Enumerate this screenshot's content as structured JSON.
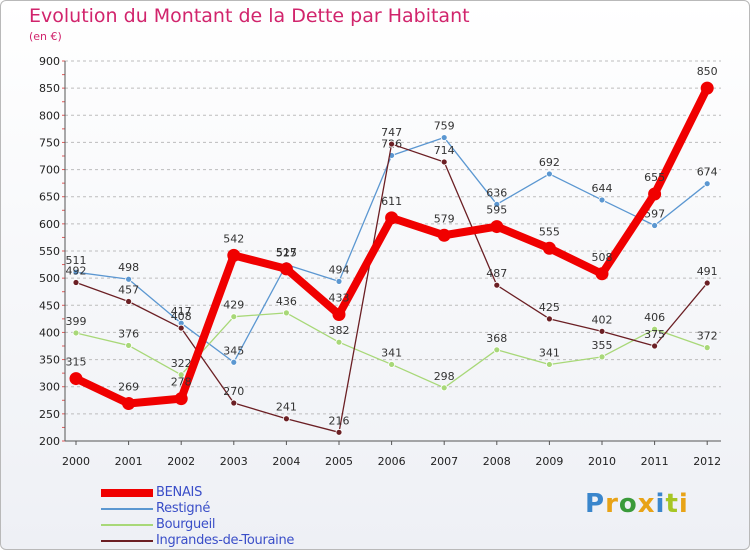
{
  "chart_data": {
    "type": "line",
    "title": "Evolution du Montant de la Dette par Habitant",
    "subtitle": "(en €)",
    "xlabel": "",
    "ylabel": "",
    "ylim": [
      200,
      900
    ],
    "yticks": [
      200,
      250,
      300,
      350,
      400,
      450,
      500,
      550,
      600,
      650,
      700,
      750,
      800,
      850,
      900
    ],
    "x": [
      "2000",
      "2001",
      "2002",
      "2003",
      "2004",
      "2005",
      "2006",
      "2007",
      "2008",
      "2009",
      "2010",
      "2011",
      "2012"
    ],
    "grid": "horizontal dashed",
    "legend_position": "bottom-left",
    "series": [
      {
        "name": "Restigné",
        "color": "#5b97d1",
        "values": [
          511,
          498,
          417,
          345,
          525,
          494,
          726,
          759,
          636,
          692,
          644,
          597,
          674
        ]
      },
      {
        "name": "Bourgueil",
        "color": "#a8d878",
        "values": [
          399,
          376,
          322,
          429,
          436,
          382,
          341,
          298,
          368,
          341,
          355,
          406,
          372
        ]
      },
      {
        "name": "Ingrandes-de-Touraine",
        "color": "#6b1f24",
        "values": [
          492,
          457,
          408,
          270,
          241,
          216,
          747,
          714,
          487,
          425,
          402,
          375,
          491
        ]
      },
      {
        "name": "BENAIS",
        "color": "#f00000",
        "values": [
          315,
          269,
          278,
          542,
          517,
          433,
          611,
          579,
          595,
          555,
          508,
          655,
          850
        ]
      }
    ]
  },
  "brand": {
    "letters": [
      "P",
      "r",
      "o",
      "x",
      "i",
      "t",
      "i"
    ],
    "colors": [
      "#3a86cc",
      "#e8a316",
      "#3a9a3a",
      "#e8a316",
      "#3a86cc",
      "#a6c624",
      "#e8a316"
    ]
  }
}
